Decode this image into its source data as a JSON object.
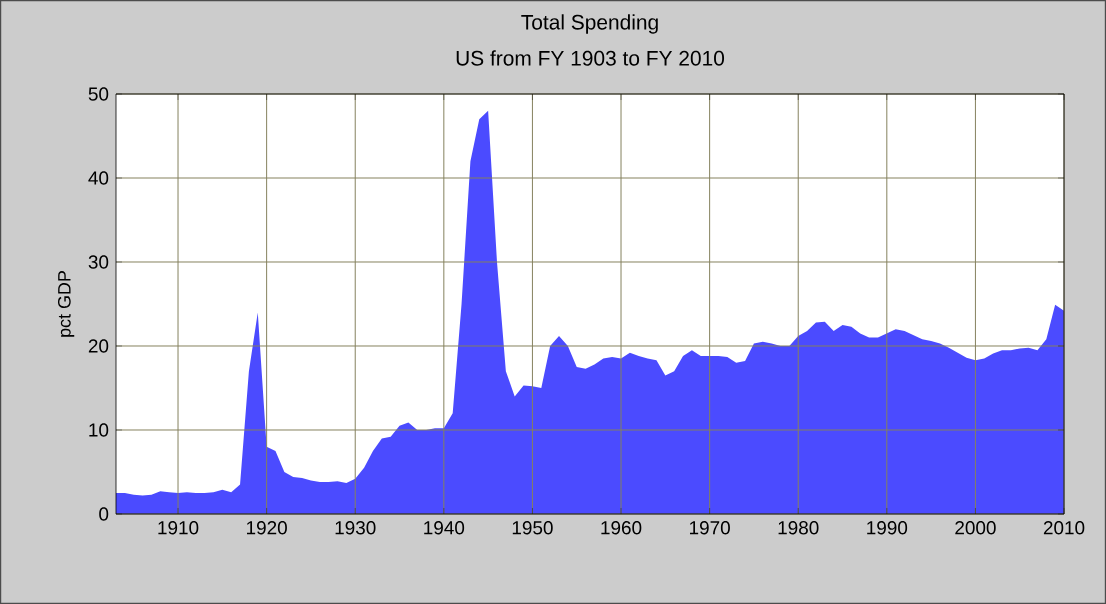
{
  "chart_data": {
    "type": "area",
    "title": "Total Spending",
    "subtitle": "US from FY 1903 to FY 2010",
    "ylabel": "pct GDP",
    "x": [
      1903,
      1904,
      1905,
      1906,
      1907,
      1908,
      1909,
      1910,
      1911,
      1912,
      1913,
      1914,
      1915,
      1916,
      1917,
      1918,
      1919,
      1920,
      1921,
      1922,
      1923,
      1924,
      1925,
      1926,
      1927,
      1928,
      1929,
      1930,
      1931,
      1932,
      1933,
      1934,
      1935,
      1936,
      1937,
      1938,
      1939,
      1940,
      1941,
      1942,
      1943,
      1944,
      1945,
      1946,
      1947,
      1948,
      1949,
      1950,
      1951,
      1952,
      1953,
      1954,
      1955,
      1956,
      1957,
      1958,
      1959,
      1960,
      1961,
      1962,
      1963,
      1964,
      1965,
      1966,
      1967,
      1968,
      1969,
      1970,
      1971,
      1972,
      1973,
      1974,
      1975,
      1976,
      1977,
      1978,
      1979,
      1980,
      1981,
      1982,
      1983,
      1984,
      1985,
      1986,
      1987,
      1988,
      1989,
      1990,
      1991,
      1992,
      1993,
      1994,
      1995,
      1996,
      1997,
      1998,
      1999,
      2000,
      2001,
      2002,
      2003,
      2004,
      2005,
      2006,
      2007,
      2008,
      2009,
      2010
    ],
    "values": [
      2.5,
      2.5,
      2.3,
      2.2,
      2.3,
      2.7,
      2.6,
      2.5,
      2.6,
      2.5,
      2.5,
      2.6,
      2.9,
      2.6,
      3.5,
      17,
      24,
      8,
      7.5,
      5,
      4.4,
      4.3,
      4.0,
      3.8,
      3.8,
      3.9,
      3.7,
      4.2,
      5.5,
      7.5,
      9,
      9.2,
      10.5,
      10.9,
      10,
      10,
      10.2,
      10.2,
      12,
      25,
      42,
      47,
      48,
      30,
      17,
      14,
      15.3,
      15.2,
      15,
      20,
      21.2,
      20,
      17.5,
      17.3,
      17.8,
      18.5,
      18.7,
      18.5,
      19.2,
      18.8,
      18.5,
      18.3,
      16.5,
      17,
      18.8,
      19.5,
      18.8,
      18.8,
      18.8,
      18.7,
      18,
      18.2,
      20.3,
      20.5,
      20.3,
      20,
      20,
      21.2,
      21.8,
      22.8,
      22.9,
      21.8,
      22.5,
      22.3,
      21.5,
      21,
      21,
      21.5,
      22,
      21.8,
      21.3,
      20.8,
      20.6,
      20.3,
      19.8,
      19.2,
      18.6,
      18.3,
      18.5,
      19.1,
      19.5,
      19.5,
      19.7,
      19.8,
      19.5,
      20.8,
      24.9,
      24.2
    ],
    "color": "#4b4bff",
    "xlim": [
      1903,
      2010
    ],
    "ylim": [
      0,
      50
    ],
    "xticks": [
      1910,
      1920,
      1930,
      1940,
      1950,
      1960,
      1970,
      1980,
      1990,
      2000,
      2010
    ],
    "yticks": [
      0,
      10,
      20,
      30,
      40,
      50
    ],
    "grid": true
  }
}
